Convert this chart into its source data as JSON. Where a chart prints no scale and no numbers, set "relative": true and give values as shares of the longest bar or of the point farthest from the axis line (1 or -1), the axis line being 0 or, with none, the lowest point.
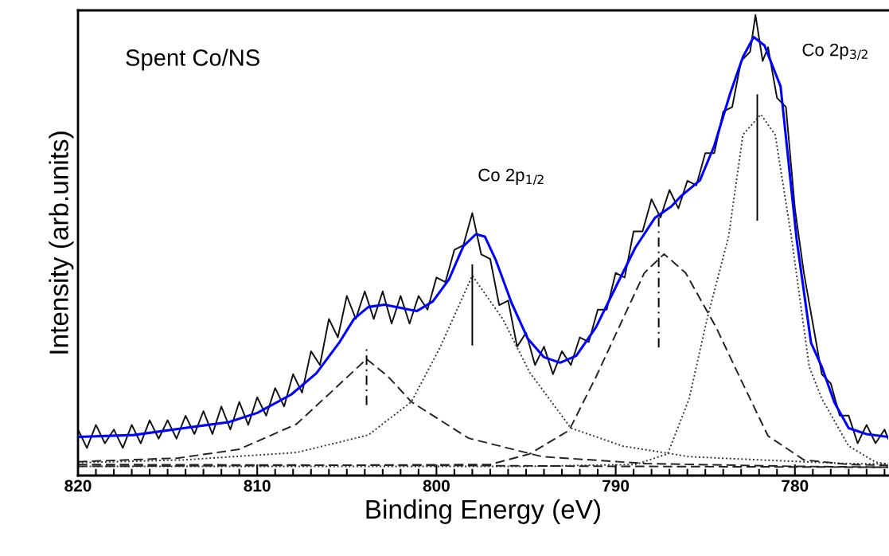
{
  "chart_data": {
    "type": "line",
    "relative": true,
    "xlabel": "Binding Energy (eV)",
    "ylabel": "Intensity (arb.units)",
    "xlim": [
      820,
      774.8
    ],
    "xticks": [
      820,
      {
        "value": 819,
        "label": null
      },
      {
        "value": 818,
        "label": null
      },
      {
        "value": 817,
        "label": null
      },
      {
        "value": 816,
        "label": null
      },
      {
        "value": 815,
        "label": null
      },
      {
        "value": 814,
        "label": null
      },
      {
        "value": 813,
        "label": null
      },
      {
        "value": 812,
        "label": null
      },
      {
        "value": 811,
        "label": null
      },
      810,
      {
        "value": 809,
        "label": null
      },
      {
        "value": 808,
        "label": null
      },
      {
        "value": 807,
        "label": null
      },
      {
        "value": 806,
        "label": null
      },
      {
        "value": 805,
        "label": null
      },
      {
        "value": 804,
        "label": null
      },
      {
        "value": 803,
        "label": null
      },
      {
        "value": 802,
        "label": null
      },
      {
        "value": 801,
        "label": null
      },
      800,
      {
        "value": 799,
        "label": null
      },
      {
        "value": 798,
        "label": null
      },
      {
        "value": 797,
        "label": null
      },
      {
        "value": 796,
        "label": null
      },
      {
        "value": 795,
        "label": null
      },
      {
        "value": 794,
        "label": null
      },
      {
        "value": 793,
        "label": null
      },
      {
        "value": 792,
        "label": null
      },
      {
        "value": 791,
        "label": null
      },
      790,
      {
        "value": 789,
        "label": null
      },
      {
        "value": 788,
        "label": null
      },
      {
        "value": 787,
        "label": null
      },
      {
        "value": 786,
        "label": null
      },
      {
        "value": 785,
        "label": null
      },
      {
        "value": 784,
        "label": null
      },
      {
        "value": 783,
        "label": null
      },
      {
        "value": 782,
        "label": null
      },
      {
        "value": 781,
        "label": null
      },
      780,
      {
        "value": 779,
        "label": null
      },
      {
        "value": 778,
        "label": null
      },
      {
        "value": 777,
        "label": null
      },
      {
        "value": 776,
        "label": null
      },
      {
        "value": 775,
        "label": null
      }
    ],
    "tick_labels": "x",
    "grid": false,
    "legend": false,
    "marker": "none",
    "annotations": [
      "Spent Co/NS",
      "Co 2p$_{1/2}$",
      "Co 2p$_{3/2}$"
    ],
    "series": [
      {
        "color": "#111111",
        "line_style": "solid",
        "x": [
          820,
          819.5,
          819,
          818.5,
          818,
          817.5,
          817,
          816.5,
          816,
          815.5,
          815,
          814.5,
          814,
          813.5,
          813,
          812.5,
          812,
          811.5,
          811,
          810.5,
          810,
          809.5,
          809,
          808.5,
          808,
          807.5,
          807,
          806.5,
          806,
          805.5,
          805,
          804.5,
          804,
          803.5,
          803,
          802.5,
          802,
          801.5,
          801,
          800.5,
          800,
          799.5,
          799,
          798.5,
          798,
          797.5,
          797,
          796.5,
          796,
          795.5,
          795,
          794.5,
          794,
          793.5,
          793,
          792.5,
          792,
          791.5,
          791,
          790.5,
          790,
          789.5,
          789,
          788.5,
          788,
          787.5,
          787,
          786.5,
          786,
          785.5,
          785,
          784.5,
          784,
          783.5,
          783,
          782.5,
          782.2,
          781.8,
          781.5,
          781,
          780.5,
          780,
          779.5,
          779,
          778.5,
          778,
          777.5,
          777,
          776.5,
          776,
          775.5,
          775,
          774.8
        ],
        "values": [
          0.1,
          0.06,
          0.11,
          0.07,
          0.1,
          0.06,
          0.11,
          0.07,
          0.12,
          0.08,
          0.12,
          0.08,
          0.13,
          0.09,
          0.14,
          0.09,
          0.15,
          0.1,
          0.16,
          0.11,
          0.17,
          0.13,
          0.19,
          0.15,
          0.22,
          0.18,
          0.27,
          0.24,
          0.34,
          0.3,
          0.39,
          0.34,
          0.4,
          0.34,
          0.4,
          0.33,
          0.39,
          0.33,
          0.39,
          0.36,
          0.43,
          0.42,
          0.49,
          0.5,
          0.57,
          0.48,
          0.47,
          0.37,
          0.38,
          0.28,
          0.31,
          0.24,
          0.28,
          0.22,
          0.27,
          0.24,
          0.3,
          0.29,
          0.36,
          0.36,
          0.44,
          0.43,
          0.53,
          0.53,
          0.6,
          0.56,
          0.62,
          0.58,
          0.64,
          0.63,
          0.7,
          0.7,
          0.79,
          0.8,
          0.9,
          0.92,
          1.0,
          0.9,
          0.93,
          0.82,
          0.8,
          0.58,
          0.44,
          0.33,
          0.22,
          0.2,
          0.13,
          0.13,
          0.07,
          0.11,
          0.07,
          0.1,
          0.08
        ]
      },
      {
        "color": "#0000ff",
        "line_style": "solid",
        "x": [
          820,
          816.9,
          814.1,
          811.6,
          810.0,
          808.1,
          806.7,
          805.4,
          804.6,
          803.8,
          802.9,
          802.0,
          801.1,
          800.2,
          799.3,
          798.5,
          797.8,
          797.3,
          796.7,
          795.8,
          794.9,
          794.0,
          793.1,
          792.2,
          791.1,
          790.0,
          788.9,
          787.8,
          786.9,
          786.4,
          785.3,
          784.5,
          783.6,
          782.9,
          782.3,
          781.7,
          780.8,
          779.9,
          779.1,
          778.5,
          777.8,
          777.0,
          776.0,
          774.8
        ],
        "values": [
          0.084,
          0.088,
          0.103,
          0.116,
          0.136,
          0.176,
          0.222,
          0.29,
          0.34,
          0.366,
          0.371,
          0.364,
          0.357,
          0.378,
          0.426,
          0.498,
          0.524,
          0.519,
          0.469,
          0.374,
          0.297,
          0.257,
          0.245,
          0.26,
          0.322,
          0.409,
          0.495,
          0.56,
          0.584,
          0.605,
          0.641,
          0.716,
          0.831,
          0.909,
          0.952,
          0.934,
          0.845,
          0.512,
          0.288,
          0.236,
          0.159,
          0.103,
          0.09,
          0.084
        ]
      },
      {
        "color": "#222222",
        "line_style": "dashed",
        "x": [
          820,
          814.4,
          811.0,
          807.8,
          805.8,
          803.9,
          802.7,
          801.4,
          798.2,
          794.1,
          788.3,
          780.0,
          774.8
        ],
        "values": [
          0.03,
          0.038,
          0.057,
          0.112,
          0.184,
          0.253,
          0.215,
          0.16,
          0.081,
          0.041,
          0.026,
          0.02,
          0.018
        ]
      },
      {
        "color": "#333333",
        "line_style": "dotted",
        "x": [
          820,
          814.1,
          807.8,
          803.8,
          801.4,
          799.8,
          798.0,
          796.3,
          794.8,
          792.5,
          789.6,
          785.9,
          781.4,
          777.0,
          774.8
        ],
        "values": [
          0.028,
          0.034,
          0.05,
          0.088,
          0.16,
          0.278,
          0.434,
          0.34,
          0.224,
          0.103,
          0.064,
          0.041,
          0.033,
          0.026,
          0.025
        ]
      },
      {
        "color": "#222222",
        "line_style": "dashed",
        "x": [
          820,
          808,
          797.0,
          794.8,
          792.6,
          791.1,
          789.6,
          788.4,
          787.3,
          786.1,
          784.4,
          783.0,
          781.5,
          779.5,
          777.0,
          774.8
        ],
        "values": [
          0.02,
          0.022,
          0.024,
          0.047,
          0.098,
          0.214,
          0.34,
          0.44,
          0.481,
          0.44,
          0.322,
          0.207,
          0.086,
          0.034,
          0.024,
          0.022
        ]
      },
      {
        "color": "#333333",
        "line_style": "dotted",
        "x": [
          820,
          795,
          788.9,
          787.1,
          785.9,
          784.9,
          783.7,
          782.9,
          781.9,
          781.1,
          780.2,
          779.2,
          778.5,
          777.0,
          775.5,
          774.8
        ],
        "values": [
          0.02,
          0.02,
          0.024,
          0.047,
          0.167,
          0.34,
          0.519,
          0.74,
          0.784,
          0.74,
          0.519,
          0.236,
          0.167,
          0.064,
          0.029,
          0.025
        ]
      },
      {
        "color": "#222222",
        "line_style": "dashed",
        "x": [
          820,
          800,
          790,
          774.8
        ],
        "values": [
          0.024,
          0.022,
          0.02,
          0.018
        ]
      },
      {
        "color": "#000000",
        "line_style": "solid",
        "x": [
          798.0,
          798.0
        ],
        "values": [
          0.284,
          0.457
        ]
      },
      {
        "color": "#000000",
        "line_style": "solid",
        "x": [
          782.1,
          782.1
        ],
        "values": [
          0.555,
          0.826
        ]
      },
      {
        "color": "#000000",
        "line_style": "dashdot",
        "x": [
          803.9,
          803.9
        ],
        "values": [
          0.153,
          0.276
        ]
      },
      {
        "color": "#000000",
        "line_style": "dashdot",
        "x": [
          787.6,
          787.6
        ],
        "values": [
          0.278,
          0.567
        ]
      }
    ]
  }
}
